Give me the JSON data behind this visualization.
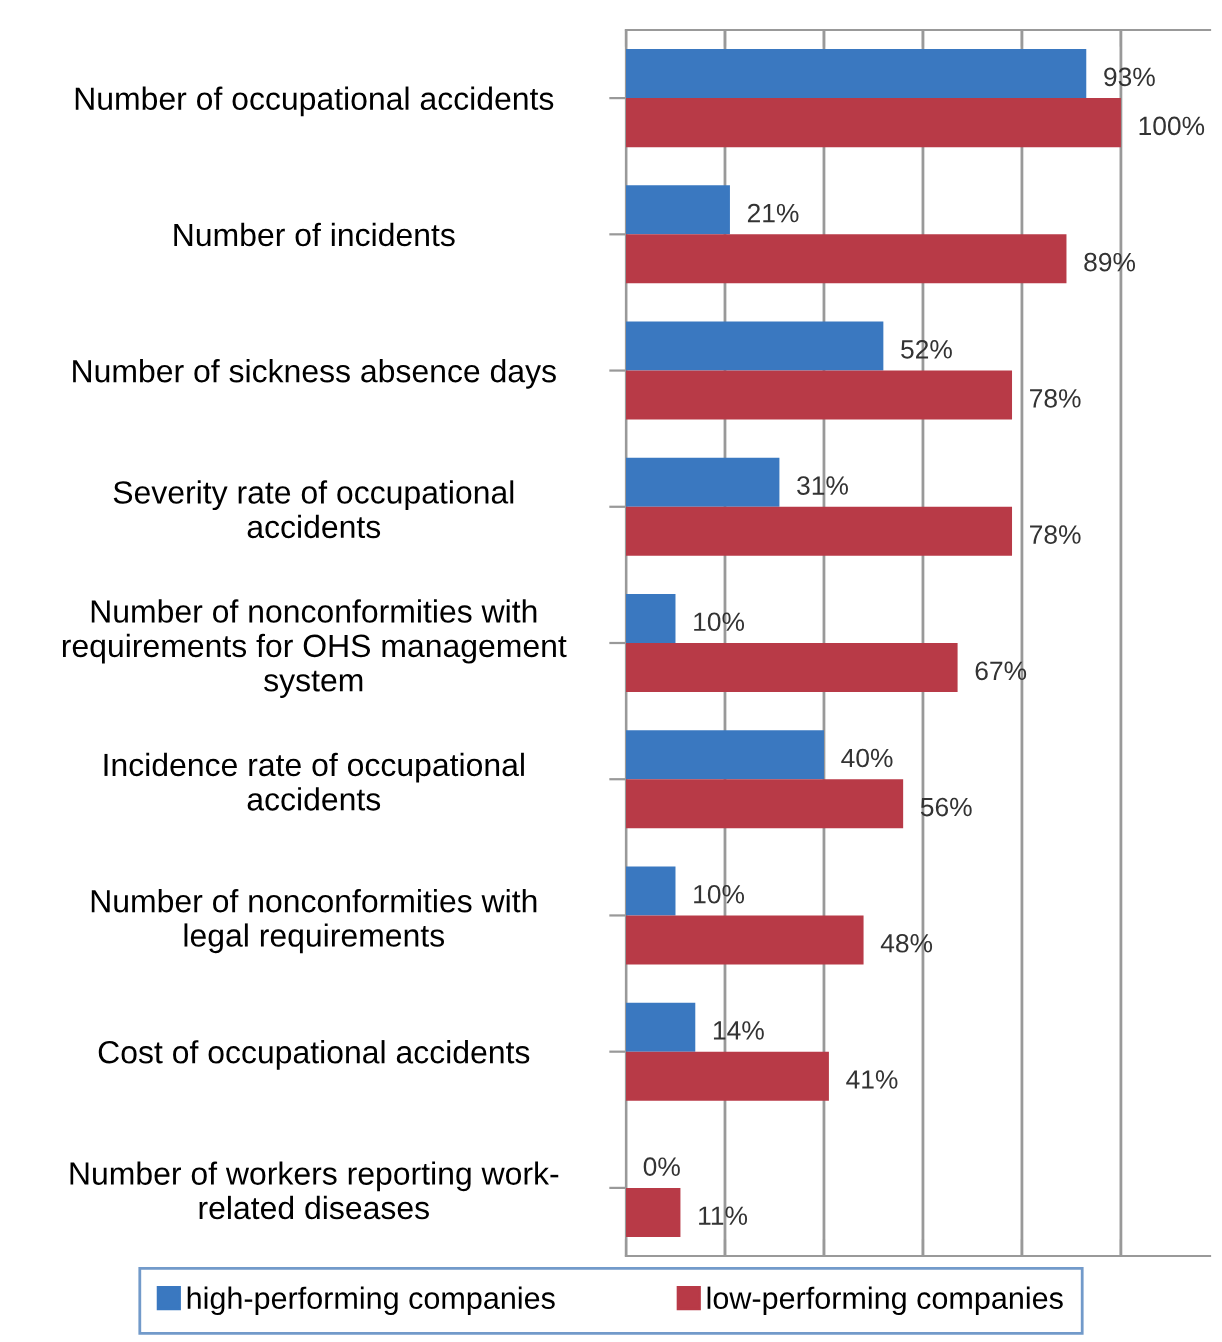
{
  "chart_data": {
    "type": "bar",
    "orientation": "horizontal",
    "categories": [
      "Number of occupational accidents",
      "Number of incidents",
      "Number of sickness absence days",
      "Severity rate of occupational\naccidents",
      "Number of nonconformities with\nrequirements for OHS management\nsystem",
      "Incidence rate of occupational\naccidents",
      "Number of nonconformities with\nlegal requirements",
      "Cost of occupational accidents",
      "Number of workers reporting work-\nrelated diseases"
    ],
    "series": [
      {
        "name": "high-performing companies",
        "color": "#3a78c0",
        "values": [
          93,
          21,
          52,
          31,
          10,
          40,
          10,
          14,
          0
        ],
        "value_labels": [
          "93%",
          "21%",
          "52%",
          "31%",
          "10%",
          "40%",
          "10%",
          "14%",
          "0%"
        ]
      },
      {
        "name": "low-performing companies",
        "color": "#b83a47",
        "values": [
          100,
          89,
          78,
          78,
          67,
          56,
          48,
          41,
          11
        ],
        "value_labels": [
          "100%",
          "89%",
          "78%",
          "78%",
          "67%",
          "56%",
          "48%",
          "41%",
          "11%"
        ]
      }
    ],
    "xlim": [
      0,
      118
    ],
    "xticks": [
      {
        "value": 0,
        "label": null
      },
      {
        "value": 20,
        "label": null
      },
      {
        "value": 40,
        "label": null
      },
      {
        "value": 60,
        "label": null
      },
      {
        "value": 80,
        "label": null
      },
      {
        "value": 100,
        "label": null
      }
    ],
    "tick_labels": "y",
    "grid": "x",
    "legend": "bottom"
  }
}
